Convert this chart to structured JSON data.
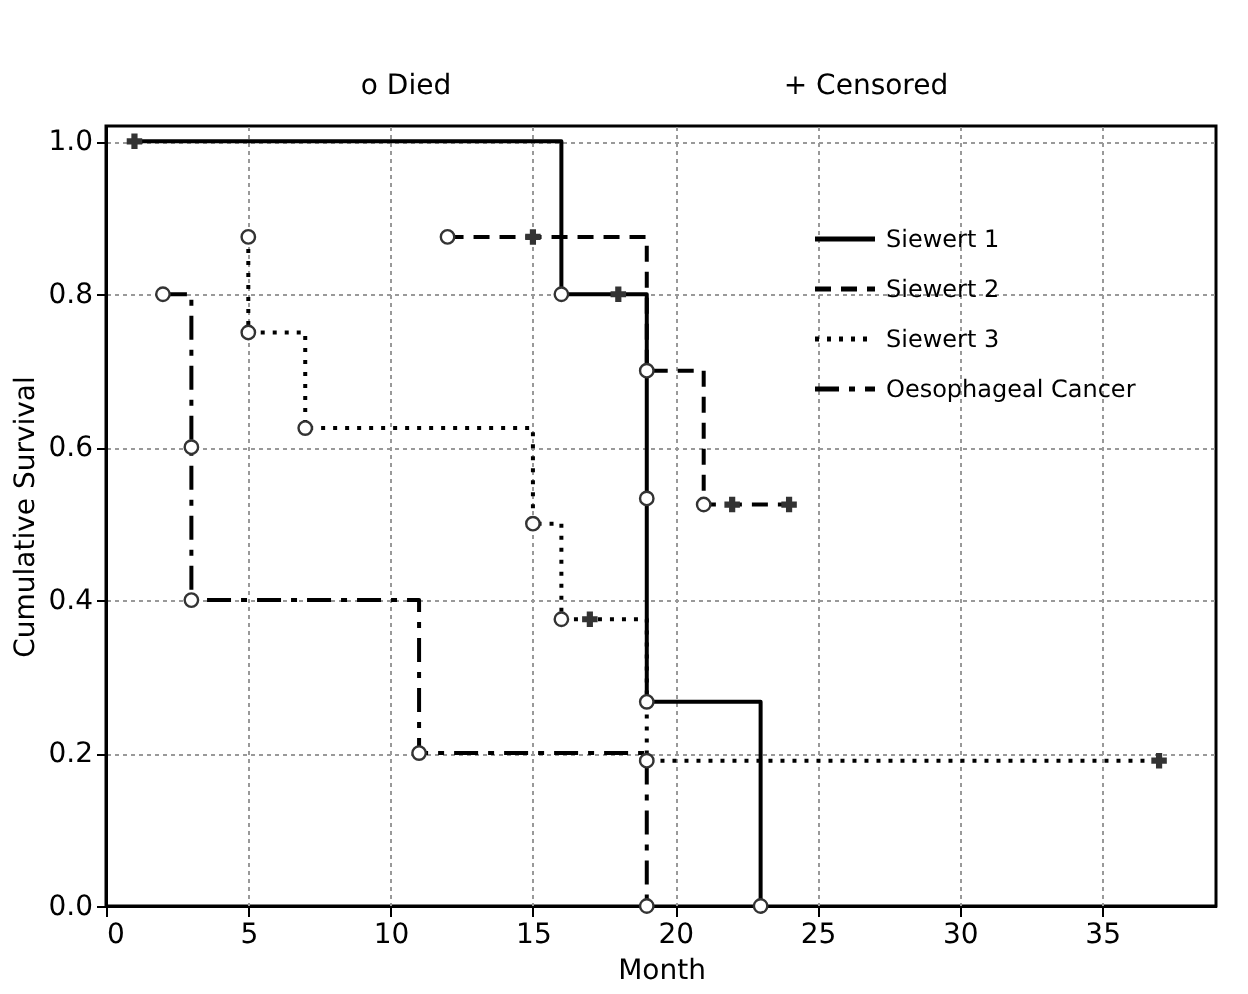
{
  "chart_data": {
    "type": "step",
    "xlabel": "Month",
    "ylabel": "Cumulative Survival",
    "annotations": [
      "o Died",
      "+ Censored"
    ],
    "xlim": [
      0,
      39
    ],
    "xticks": [
      0,
      5,
      10,
      15,
      20,
      25,
      30,
      35
    ],
    "ylim": [
      0,
      1.02
    ],
    "yticks": [
      {
        "value": 0,
        "label": "0.0"
      },
      0.2,
      0.4,
      0.6,
      0.8,
      {
        "value": 1,
        "label": "1.0"
      }
    ],
    "grid": true,
    "legend": "top right",
    "series": [
      {
        "name": "Siewert 1",
        "color": "#000000",
        "line_style": "solid",
        "x": [
          1,
          16,
          18,
          19,
          23
        ],
        "values": [
          1.0,
          0.8,
          0.8,
          0.267,
          0
        ]
      },
      {
        "name": "Siewert 2",
        "color": "#000000",
        "line_style": "dashed",
        "x": [
          12,
          15,
          19,
          21,
          24
        ],
        "values": [
          0.875,
          0.875,
          0.7,
          0.525,
          0.525
        ]
      },
      {
        "name": "Siewert 3",
        "color": "#000000",
        "line_style": "dotted",
        "x": [
          5,
          5,
          7,
          15,
          16,
          17,
          19,
          37
        ],
        "values": [
          0.875,
          0.75,
          0.625,
          0.5,
          0.375,
          0.375,
          0.19,
          0.19
        ]
      },
      {
        "name": "Oesophageal Cancer",
        "color": "#000000",
        "line_style": "dashdot",
        "x": [
          2,
          3,
          11,
          19
        ],
        "values": [
          0.8,
          0.4,
          0.2,
          0
        ]
      },
      {
        "type": "scatter",
        "marker": "circle",
        "color": "#333333",
        "x": [
          16,
          19,
          19,
          23,
          12,
          19,
          21,
          5,
          5,
          7,
          15,
          16,
          19,
          2,
          3,
          3,
          11,
          19
        ],
        "values": [
          0.8,
          0.533,
          0.267,
          0,
          0.875,
          0.7,
          0.525,
          0.875,
          0.75,
          0.625,
          0.5,
          0.375,
          0.19,
          0.8,
          0.6,
          0.4,
          0.2,
          0
        ]
      },
      {
        "type": "scatter",
        "marker": "cross",
        "color": "#333333",
        "x": [
          1,
          18,
          15,
          22,
          24,
          17,
          37
        ],
        "values": [
          1.0,
          0.8,
          0.875,
          0.525,
          0.525,
          0.375,
          0.19
        ]
      }
    ]
  }
}
